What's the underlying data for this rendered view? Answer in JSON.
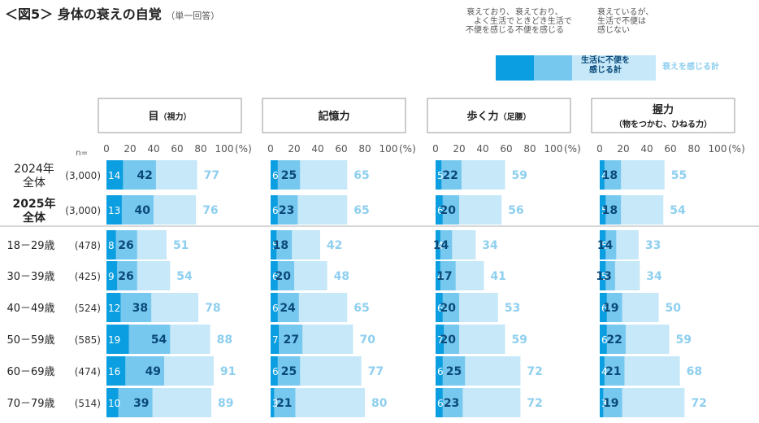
{
  "header": {
    "title": "＜図5＞ 身体の衰えの自覚",
    "subtitle": "（単一回答）"
  },
  "legend": {
    "strong": "衰えており、\nよく生活で\n不便を感じる",
    "sometimes": "衰えており、\nときどき生活で\n不便を感じる",
    "none": "衰えているが、\n生活で不便は\n感じない",
    "subtotal_label": "生活に不便を\n感じる計",
    "total_label": "衰えを感じる計"
  },
  "colors": {
    "strong": "#0b9ee0",
    "sometimes": "#77c8ef",
    "none": "#c6e8f8",
    "label_dark": "#0a4a7a",
    "label_total": "#8ecfef",
    "divider": "#cccccc",
    "panel_border": "#999999"
  },
  "chart_data": {
    "type": "bar",
    "orientation": "horizontal",
    "stacked": true,
    "xlim": [
      0,
      100
    ],
    "xticks": [
      "0",
      "20",
      "40",
      "60",
      "80",
      "100"
    ],
    "unit": "(%)",
    "n_label": "n=",
    "panels": [
      {
        "title": "目",
        "subtitle": "（視力）"
      },
      {
        "title": "記憶力",
        "subtitle": ""
      },
      {
        "title": "歩く力",
        "subtitle": "（足腰）"
      },
      {
        "title": "握力",
        "subtitle": "（物をつかむ、ひねる力）"
      }
    ],
    "rows": [
      {
        "label": "2024年\n全体",
        "n": "(3,000)",
        "bold": false
      },
      {
        "label": "2025年\n全体",
        "n": "(3,000)",
        "bold": true
      },
      {
        "label": "18－29歳",
        "n": "(478)",
        "bold": false
      },
      {
        "label": "30－39歳",
        "n": "(425)",
        "bold": false
      },
      {
        "label": "40－49歳",
        "n": "(524)",
        "bold": false
      },
      {
        "label": "50－59歳",
        "n": "(585)",
        "bold": false
      },
      {
        "label": "60－69歳",
        "n": "(474)",
        "bold": false
      },
      {
        "label": "70－79歳",
        "n": "(514)",
        "bold": false
      }
    ],
    "series": [
      {
        "name": "衰えており、よく生活で不便を感じる",
        "panels": [
          [
            14,
            13,
            8,
            9,
            12,
            19,
            16,
            10
          ],
          [
            6,
            6,
            5,
            6,
            6,
            7,
            6,
            3
          ],
          [
            5,
            6,
            4,
            4,
            6,
            7,
            6,
            6
          ],
          [
            4,
            5,
            5,
            5,
            6,
            6,
            4,
            3
          ]
        ]
      },
      {
        "name": "生活に不便を感じる計",
        "panels": [
          [
            42,
            40,
            26,
            26,
            38,
            54,
            49,
            39
          ],
          [
            25,
            23,
            18,
            20,
            24,
            27,
            25,
            21
          ],
          [
            22,
            20,
            14,
            17,
            20,
            20,
            25,
            23
          ],
          [
            18,
            18,
            14,
            13,
            19,
            22,
            21,
            19
          ]
        ]
      },
      {
        "name": "衰えを感じる計",
        "panels": [
          [
            77,
            76,
            51,
            54,
            78,
            88,
            91,
            89
          ],
          [
            65,
            65,
            42,
            48,
            65,
            70,
            77,
            80
          ],
          [
            59,
            56,
            34,
            41,
            53,
            59,
            72,
            72
          ],
          [
            55,
            54,
            33,
            34,
            50,
            59,
            68,
            72
          ]
        ]
      }
    ]
  }
}
